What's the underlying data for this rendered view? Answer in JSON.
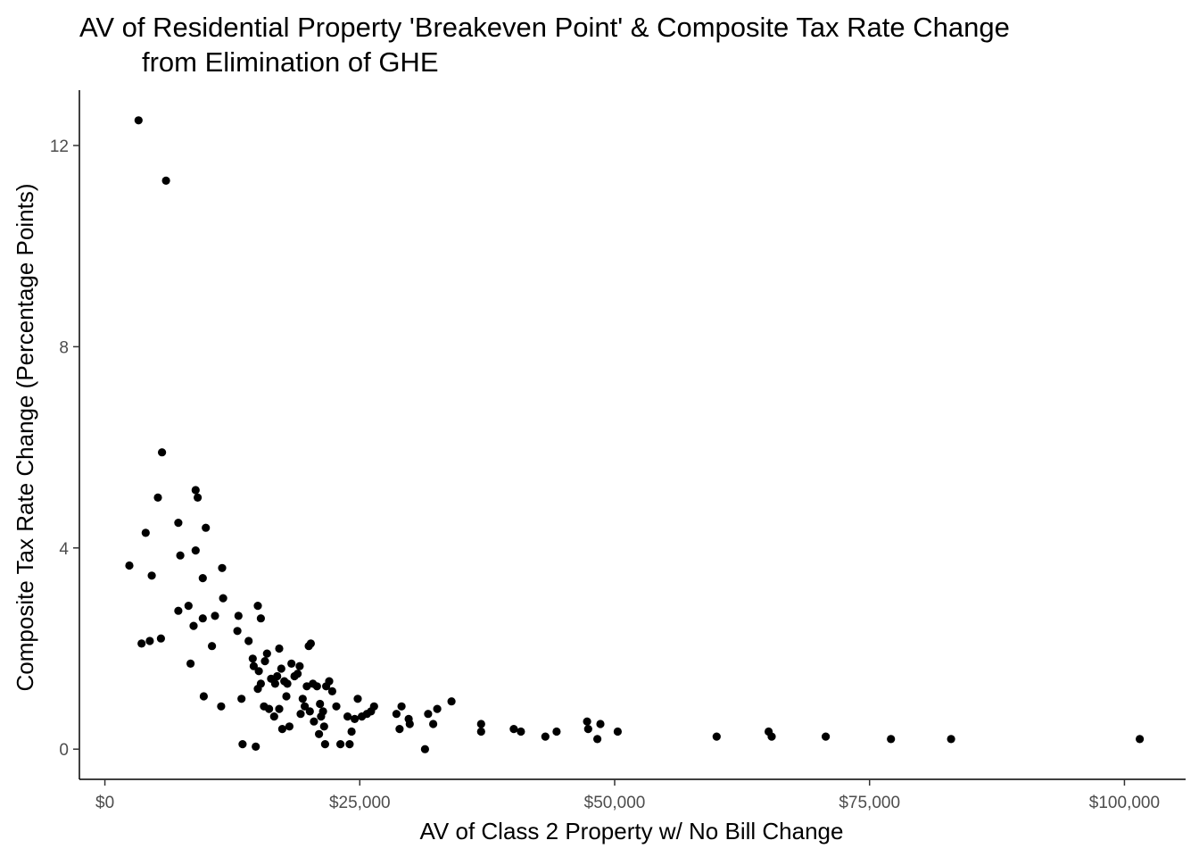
{
  "chart_data": {
    "type": "scatter",
    "title_line1": "AV of Residential Property 'Breakeven Point' & Composite Tax Rate Change",
    "title_line2": "from Elimination of GHE",
    "xlabel": "AV of Class 2 Property w/ No Bill Change",
    "ylabel": "Composite Tax Rate Change (Percentage Points)",
    "xlim": [
      -2500,
      106000
    ],
    "ylim": [
      -0.6,
      13.1
    ],
    "x_ticks": [
      {
        "value": 0,
        "label": "$0"
      },
      {
        "value": 25000,
        "label": "$25,000"
      },
      {
        "value": 50000,
        "label": "$50,000"
      },
      {
        "value": 75000,
        "label": "$75,000"
      },
      {
        "value": 100000,
        "label": "$100,000"
      }
    ],
    "y_ticks": [
      {
        "value": 0,
        "label": "0"
      },
      {
        "value": 4,
        "label": "4"
      },
      {
        "value": 8,
        "label": "8"
      },
      {
        "value": 12,
        "label": "12"
      }
    ],
    "grid": false,
    "legend": "none",
    "point_color": "#000000",
    "points": [
      [
        3300,
        12.5
      ],
      [
        6000,
        11.3
      ],
      [
        5600,
        5.9
      ],
      [
        5200,
        5.0
      ],
      [
        8900,
        5.15
      ],
      [
        9100,
        5.0
      ],
      [
        7200,
        4.5
      ],
      [
        4000,
        4.3
      ],
      [
        9900,
        4.4
      ],
      [
        2400,
        3.65
      ],
      [
        7400,
        3.85
      ],
      [
        8900,
        3.95
      ],
      [
        4600,
        3.45
      ],
      [
        9600,
        3.4
      ],
      [
        11500,
        3.6
      ],
      [
        11600,
        3.0
      ],
      [
        7200,
        2.75
      ],
      [
        8200,
        2.85
      ],
      [
        8700,
        2.45
      ],
      [
        9600,
        2.6
      ],
      [
        10800,
        2.65
      ],
      [
        13100,
        2.65
      ],
      [
        15000,
        2.85
      ],
      [
        15300,
        2.6
      ],
      [
        3600,
        2.1
      ],
      [
        4400,
        2.15
      ],
      [
        5500,
        2.2
      ],
      [
        10500,
        2.05
      ],
      [
        13000,
        2.35
      ],
      [
        14100,
        2.15
      ],
      [
        8400,
        1.7
      ],
      [
        9700,
        1.05
      ],
      [
        11400,
        0.85
      ],
      [
        13400,
        1.0
      ],
      [
        14500,
        1.8
      ],
      [
        14600,
        1.65
      ],
      [
        15100,
        1.55
      ],
      [
        15300,
        1.3
      ],
      [
        15700,
        1.75
      ],
      [
        15900,
        1.9
      ],
      [
        16300,
        1.4
      ],
      [
        16700,
        1.3
      ],
      [
        16900,
        1.45
      ],
      [
        17100,
        2.0
      ],
      [
        17300,
        1.6
      ],
      [
        17600,
        1.35
      ],
      [
        17900,
        1.3
      ],
      [
        18300,
        1.7
      ],
      [
        18600,
        1.45
      ],
      [
        18900,
        1.5
      ],
      [
        19100,
        1.65
      ],
      [
        19400,
        1.0
      ],
      [
        19800,
        1.25
      ],
      [
        20000,
        2.05
      ],
      [
        20200,
        2.1
      ],
      [
        20400,
        1.3
      ],
      [
        20800,
        1.25
      ],
      [
        21100,
        0.9
      ],
      [
        21400,
        0.75
      ],
      [
        21700,
        1.25
      ],
      [
        22000,
        1.35
      ],
      [
        22300,
        1.15
      ],
      [
        15000,
        1.2
      ],
      [
        15600,
        0.85
      ],
      [
        16100,
        0.8
      ],
      [
        16600,
        0.65
      ],
      [
        17100,
        0.8
      ],
      [
        17400,
        0.4
      ],
      [
        17800,
        1.05
      ],
      [
        18100,
        0.45
      ],
      [
        19200,
        0.7
      ],
      [
        19600,
        0.85
      ],
      [
        20100,
        0.75
      ],
      [
        20500,
        0.55
      ],
      [
        21000,
        0.3
      ],
      [
        21200,
        0.65
      ],
      [
        21500,
        0.45
      ],
      [
        21600,
        0.1
      ],
      [
        22700,
        0.85
      ],
      [
        23100,
        0.1
      ],
      [
        23800,
        0.65
      ],
      [
        24000,
        0.1
      ],
      [
        24200,
        0.35
      ],
      [
        24500,
        0.6
      ],
      [
        24800,
        1.0
      ],
      [
        25200,
        0.65
      ],
      [
        25700,
        0.7
      ],
      [
        26100,
        0.75
      ],
      [
        26400,
        0.85
      ],
      [
        28600,
        0.7
      ],
      [
        28900,
        0.4
      ],
      [
        29100,
        0.85
      ],
      [
        29800,
        0.6
      ],
      [
        29900,
        0.5
      ],
      [
        31400,
        0.0
      ],
      [
        31700,
        0.7
      ],
      [
        32200,
        0.5
      ],
      [
        32600,
        0.8
      ],
      [
        34000,
        0.95
      ],
      [
        36900,
        0.5
      ],
      [
        36900,
        0.35
      ],
      [
        40100,
        0.4
      ],
      [
        40800,
        0.35
      ],
      [
        43200,
        0.25
      ],
      [
        44300,
        0.35
      ],
      [
        47300,
        0.55
      ],
      [
        47400,
        0.4
      ],
      [
        48300,
        0.2
      ],
      [
        48600,
        0.5
      ],
      [
        50300,
        0.35
      ],
      [
        60000,
        0.25
      ],
      [
        65100,
        0.35
      ],
      [
        65400,
        0.25
      ],
      [
        70700,
        0.25
      ],
      [
        77100,
        0.2
      ],
      [
        83000,
        0.2
      ],
      [
        101500,
        0.2
      ],
      [
        13500,
        0.1
      ],
      [
        14800,
        0.05
      ]
    ]
  }
}
